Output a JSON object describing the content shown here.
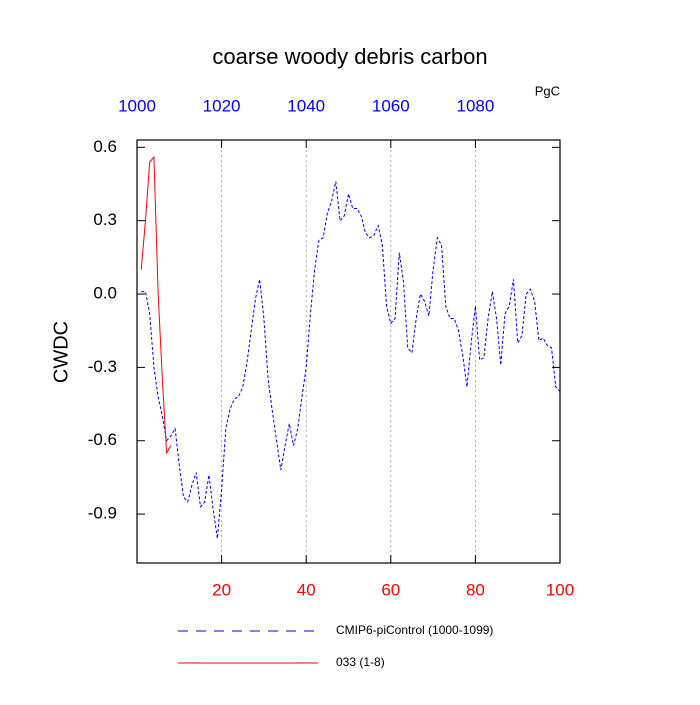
{
  "chart_data": {
    "type": "line",
    "title": "coarse woody debris carbon",
    "ylabel": "CWDC",
    "x2label": "PgC",
    "xlim": [
      0,
      100
    ],
    "xticks": [
      20,
      40,
      60,
      80,
      100
    ],
    "x2lim": [
      1000,
      1100
    ],
    "x2ticks": [
      1000,
      1020,
      1040,
      1060,
      1080
    ],
    "ylim": [
      -1.1,
      0.63
    ],
    "yticks": [
      0.6,
      0.3,
      {
        "value": 0,
        "label": "0.0"
      },
      -0.3,
      -0.6,
      -0.9
    ],
    "grid": true,
    "series": [
      {
        "name": "CMIP6-piControl (1000-1099)",
        "color": "#0000ff",
        "dash": true,
        "x": [
          1,
          2,
          3,
          4,
          5,
          6,
          7,
          8,
          9,
          10,
          11,
          12,
          13,
          14,
          15,
          16,
          17,
          18,
          19,
          20,
          21,
          22,
          23,
          24,
          25,
          26,
          27,
          28,
          29,
          30,
          31,
          32,
          33,
          34,
          35,
          36,
          37,
          38,
          39,
          40,
          41,
          42,
          43,
          44,
          45,
          46,
          47,
          48,
          49,
          50,
          51,
          52,
          53,
          54,
          55,
          56,
          57,
          58,
          59,
          60,
          61,
          62,
          63,
          64,
          65,
          66,
          67,
          68,
          69,
          70,
          71,
          72,
          73,
          74,
          75,
          76,
          77,
          78,
          79,
          80,
          81,
          82,
          83,
          84,
          85,
          86,
          87,
          88,
          89,
          90,
          91,
          92,
          93,
          94,
          95,
          96,
          97,
          98,
          99,
          100
        ],
        "values": [
          0.01,
          0.01,
          -0.08,
          -0.3,
          -0.42,
          -0.5,
          -0.6,
          -0.58,
          -0.55,
          -0.7,
          -0.83,
          -0.85,
          -0.78,
          -0.73,
          -0.87,
          -0.85,
          -0.74,
          -0.88,
          -1.0,
          -0.8,
          -0.55,
          -0.47,
          -0.43,
          -0.42,
          -0.38,
          -0.28,
          -0.15,
          -0.02,
          0.06,
          -0.1,
          -0.35,
          -0.48,
          -0.6,
          -0.72,
          -0.62,
          -0.53,
          -0.62,
          -0.55,
          -0.42,
          -0.3,
          -0.08,
          0.1,
          0.22,
          0.23,
          0.33,
          0.38,
          0.46,
          0.3,
          0.32,
          0.41,
          0.35,
          0.35,
          0.32,
          0.25,
          0.23,
          0.24,
          0.28,
          0.2,
          -0.05,
          -0.12,
          -0.1,
          0.17,
          0.05,
          -0.22,
          -0.24,
          -0.1,
          0.0,
          -0.03,
          -0.09,
          0.1,
          0.23,
          0.2,
          -0.05,
          -0.1,
          -0.1,
          -0.15,
          -0.25,
          -0.38,
          -0.2,
          -0.05,
          -0.27,
          -0.26,
          -0.1,
          0.01,
          -0.1,
          -0.29,
          -0.08,
          -0.05,
          0.06,
          -0.2,
          -0.17,
          0.0,
          0.02,
          -0.03,
          -0.19,
          -0.18,
          -0.21,
          -0.22,
          -0.38,
          -0.4
        ]
      },
      {
        "name": "033 (1-8)",
        "color": "#ff0000",
        "dash": false,
        "x": [
          1,
          2,
          3,
          4,
          5,
          6,
          7,
          8
        ],
        "values": [
          0.1,
          0.3,
          0.54,
          0.56,
          0.0,
          -0.35,
          -0.65,
          -0.62
        ]
      }
    ]
  }
}
